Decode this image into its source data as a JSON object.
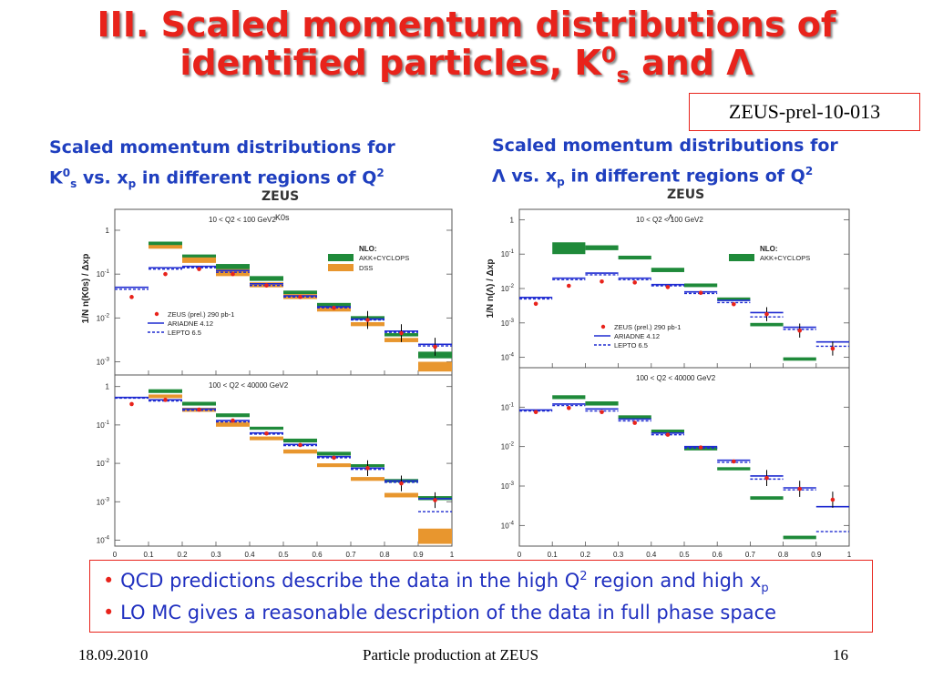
{
  "slide": {
    "title_line1": "III. Scaled momentum distributions of",
    "title_line2_pre": "identified particles, K",
    "title_line2_sup": "0",
    "title_line2_sub": "s",
    "title_line2_post": " and Λ",
    "prelim_tag": "ZEUS-prel-10-013",
    "left_caption_line1": "Scaled momentum distributions for",
    "left_caption_l2_k": "K",
    "left_caption_l2_sup": "0",
    "left_caption_l2_sub": "s",
    "left_caption_l2_mid": " vs. x",
    "left_caption_l2_psub": "p",
    "left_caption_l2_end": " in different regions of Q",
    "left_caption_l2_qsup": "2",
    "right_caption_line1": "Scaled momentum distributions for",
    "right_caption_l2_a": "Λ vs. x",
    "right_caption_l2_psub": "p",
    "right_caption_l2_end": " in different regions of Q",
    "right_caption_l2_qsup": "2",
    "bullet1_a": "QCD   predictions   describe the  data  in the  high Q",
    "bullet1_sup": "2",
    "bullet1_b": " region and high x",
    "bullet1_sub": "p",
    "bullet2": "LO MC  gives a  reasonable description of  the data in full  phase space",
    "footer_date": "18.09.2010",
    "footer_center": "Particle production at ZEUS",
    "footer_page": "16"
  },
  "chart_data": [
    {
      "type": "bar",
      "experiment": "ZEUS",
      "particle_label": "K0s",
      "ylabel": "1/N n(K0s) / Δxp",
      "yscale": "log",
      "xlim": [
        0,
        1
      ],
      "x_ticks": [
        "0",
        "0.1",
        "0.2",
        "0.3",
        "0.4",
        "0.5",
        "0.6",
        "0.7",
        "0.8",
        "0.9",
        "1"
      ],
      "legend": {
        "nlo_title": "NLO:",
        "nlo_items": [
          "AKK+CYCLOPS",
          "DSS"
        ],
        "data_label": "ZEUS (prel.) 290 pb-1",
        "mc_items": [
          "ARIADNE 4.12",
          "LEPTO 6.5"
        ]
      },
      "panels": [
        {
          "q2_label": "10 < Q2 < 100 GeV2",
          "ylim": [
            0.0005,
            3
          ],
          "y_ticks": [
            {
              "v": 1,
              "label": "1"
            },
            {
              "v": 0.1,
              "label": "10-1"
            },
            {
              "v": 0.01,
              "label": "10-2"
            },
            {
              "v": 0.001,
              "label": "10-3"
            }
          ],
          "bin_edges": [
            0,
            0.1,
            0.2,
            0.3,
            0.4,
            0.5,
            0.6,
            0.7,
            0.8,
            0.9,
            1.0
          ],
          "data": [
            0.03,
            0.1,
            0.13,
            0.1,
            0.055,
            0.03,
            0.017,
            0.009,
            0.0045,
            0.0022
          ],
          "ariadne": [
            0.05,
            0.14,
            0.15,
            0.12,
            0.06,
            0.032,
            0.018,
            0.0095,
            0.005,
            0.0025
          ],
          "lepto": [
            0.045,
            0.13,
            0.14,
            0.11,
            0.055,
            0.03,
            0.017,
            0.009,
            0.0047,
            0.0023
          ],
          "nlo_bands": [
            {
              "name": "AKK+CYCLOPS",
              "bins": [
                null,
                [
                  0.42,
                  0.55
                ],
                [
                  0.22,
                  0.28
                ],
                [
                  0.12,
                  0.17
                ],
                [
                  0.07,
                  0.09
                ],
                [
                  0.035,
                  0.042
                ],
                [
                  0.018,
                  0.022
                ],
                [
                  0.009,
                  0.011
                ],
                [
                  0.0038,
                  0.0045
                ],
                [
                  0.0012,
                  0.0017
                ]
              ]
            },
            {
              "name": "DSS",
              "bins": [
                null,
                [
                  0.38,
                  0.46
                ],
                [
                  0.18,
                  0.24
                ],
                [
                  0.09,
                  0.13
                ],
                [
                  0.05,
                  0.065
                ],
                [
                  0.027,
                  0.035
                ],
                [
                  0.014,
                  0.018
                ],
                [
                  0.0065,
                  0.008
                ],
                [
                  0.0028,
                  0.0035
                ],
                [
                  0.0006,
                  0.001
                ]
              ]
            }
          ]
        },
        {
          "q2_label": "100 < Q2 < 40000 GeV2",
          "ylim": [
            7e-05,
            2
          ],
          "y_ticks": [
            {
              "v": 1,
              "label": "1"
            },
            {
              "v": 0.1,
              "label": "10-1"
            },
            {
              "v": 0.01,
              "label": "10-2"
            },
            {
              "v": 0.001,
              "label": "10-3"
            },
            {
              "v": 0.0001,
              "label": "10-4"
            }
          ],
          "bin_edges": [
            0,
            0.1,
            0.2,
            0.3,
            0.4,
            0.5,
            0.6,
            0.7,
            0.8,
            0.9,
            1.0
          ],
          "data": [
            0.35,
            0.45,
            0.25,
            0.13,
            0.06,
            0.03,
            0.014,
            0.0075,
            0.003,
            0.0011
          ],
          "ariadne": [
            0.52,
            0.45,
            0.26,
            0.13,
            0.062,
            0.031,
            0.015,
            0.0075,
            0.0035,
            0.0012
          ],
          "lepto": [
            0.5,
            0.42,
            0.24,
            0.12,
            0.058,
            0.029,
            0.014,
            0.007,
            0.0032,
            0.00055
          ],
          "nlo_bands": [
            {
              "name": "AKK+CYCLOPS",
              "bins": [
                null,
                [
                  0.68,
                  0.85
                ],
                [
                  0.32,
                  0.4
                ],
                [
                  0.16,
                  0.2
                ],
                [
                  0.075,
                  0.09
                ],
                [
                  0.035,
                  0.044
                ],
                [
                  0.016,
                  0.02
                ],
                [
                  0.008,
                  0.0095
                ],
                [
                  0.0032,
                  0.0039
                ],
                [
                  0.0011,
                  0.0014
                ]
              ]
            },
            {
              "name": "DSS",
              "bins": [
                null,
                [
                  0.5,
                  0.62
                ],
                [
                  0.22,
                  0.28
                ],
                [
                  0.09,
                  0.12
                ],
                [
                  0.04,
                  0.05
                ],
                [
                  0.018,
                  0.023
                ],
                [
                  0.008,
                  0.01
                ],
                [
                  0.0035,
                  0.0044
                ],
                [
                  0.0013,
                  0.0017
                ],
                [
                  8e-05,
                  0.0002
                ]
              ]
            }
          ]
        }
      ]
    },
    {
      "type": "bar",
      "experiment": "ZEUS",
      "particle_label": "Λ",
      "ylabel": "1/N n(Λ) / Δxp",
      "yscale": "log",
      "xlim": [
        0,
        1
      ],
      "x_ticks": [
        "0",
        "0.1",
        "0.2",
        "0.3",
        "0.4",
        "0.5",
        "0.6",
        "0.7",
        "0.8",
        "0.9",
        "1"
      ],
      "legend": {
        "nlo_title": "NLO:",
        "nlo_items": [
          "AKK+CYCLOPS"
        ],
        "data_label": "ZEUS (prel.) 290 pb-1",
        "mc_items": [
          "ARIADNE 4.12",
          "LEPTO 6.5"
        ]
      },
      "panels": [
        {
          "q2_label": "10 < Q2 < 100 GeV2",
          "ylim": [
            5e-05,
            2
          ],
          "y_ticks": [
            {
              "v": 1,
              "label": "1"
            },
            {
              "v": 0.1,
              "label": "10-1"
            },
            {
              "v": 0.01,
              "label": "10-2"
            },
            {
              "v": 0.001,
              "label": "10-3"
            },
            {
              "v": 0.0001,
              "label": "10-4"
            }
          ],
          "bin_edges": [
            0,
            0.1,
            0.2,
            0.3,
            0.4,
            0.5,
            0.6,
            0.7,
            0.8,
            0.9,
            1.0
          ],
          "data": [
            0.0036,
            0.012,
            0.016,
            0.015,
            0.011,
            0.0075,
            0.0035,
            0.0018,
            0.0006,
            0.00018
          ],
          "ariadne": [
            0.0055,
            0.02,
            0.028,
            0.02,
            0.013,
            0.008,
            0.0045,
            0.002,
            0.00075,
            0.00028
          ],
          "lepto": [
            0.005,
            0.018,
            0.025,
            0.018,
            0.012,
            0.0072,
            0.0039,
            0.0015,
            0.00065,
            0.00021
          ],
          "nlo_bands": [
            {
              "name": "AKK+CYCLOPS",
              "bins": [
                null,
                [
                  0.1,
                  0.22
                ],
                [
                  0.13,
                  0.18
                ],
                [
                  0.07,
                  0.09
                ],
                [
                  0.03,
                  0.04
                ],
                [
                  0.011,
                  0.014
                ],
                [
                  0.0045,
                  0.0055
                ],
                [
                  0.0008,
                  0.001
                ],
                [
                  8e-05,
                  0.0001
                ],
                null
              ]
            }
          ]
        },
        {
          "q2_label": "100 < Q2 < 40000 GeV2",
          "ylim": [
            3e-05,
            1
          ],
          "y_ticks": [
            {
              "v": 0.1,
              "label": "10-1"
            },
            {
              "v": 0.01,
              "label": "10-2"
            },
            {
              "v": 0.001,
              "label": "10-3"
            },
            {
              "v": 0.0001,
              "label": "10-4"
            }
          ],
          "bin_edges": [
            0,
            0.1,
            0.2,
            0.3,
            0.4,
            0.5,
            0.6,
            0.7,
            0.8,
            0.9,
            1.0
          ],
          "data": [
            0.075,
            0.095,
            0.075,
            0.04,
            0.02,
            0.0095,
            0.0042,
            0.0016,
            0.00085,
            0.00045
          ],
          "ariadne": [
            0.085,
            0.12,
            0.09,
            0.05,
            0.022,
            0.01,
            0.0045,
            0.0018,
            0.0009,
            0.0003
          ],
          "lepto": [
            0.08,
            0.11,
            0.08,
            0.045,
            0.02,
            0.0092,
            0.004,
            0.0015,
            0.0008,
            7e-05
          ],
          "nlo_bands": [
            {
              "name": "AKK+CYCLOPS",
              "bins": [
                null,
                [
                  0.16,
                  0.2
                ],
                [
                  0.11,
                  0.14
                ],
                [
                  0.05,
                  0.062
                ],
                [
                  0.022,
                  0.027
                ],
                [
                  0.008,
                  0.0097
                ],
                [
                  0.0025,
                  0.003
                ],
                [
                  0.00045,
                  0.00055
                ],
                [
                  4.5e-05,
                  5.5e-05
                ],
                null
              ]
            }
          ]
        }
      ]
    }
  ]
}
